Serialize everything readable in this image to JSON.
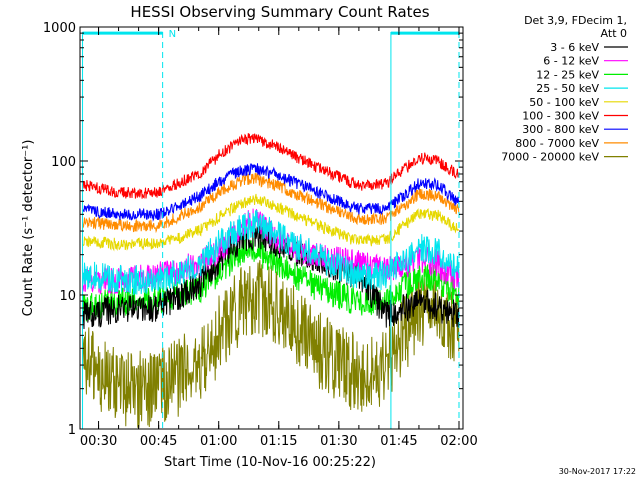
{
  "chart_data": {
    "type": "line",
    "title": "HESSI Observing Summary Count Rates",
    "xlabel": "Start Time (10-Nov-16 00:25:22)",
    "ylabel": "Count Rate (s⁻¹ detector⁻¹)",
    "xlim": [
      "00:25:22",
      "02:01:00"
    ],
    "ylim": [
      1,
      1000
    ],
    "yscale": "log",
    "grid": false,
    "x_ticks": [
      "00:30",
      "00:45",
      "01:00",
      "01:15",
      "01:30",
      "01:45",
      "02:00"
    ],
    "y_ticks": [
      "1",
      "10",
      "100",
      "1000"
    ],
    "legend": {
      "position": "right",
      "header": [
        "Det 3,9, FDecim 1,",
        "Att 0"
      ]
    },
    "annotations": {
      "flag_label": "N",
      "date_stamp": "30-Nov-2017 17:22"
    },
    "series": [
      {
        "name": "3 - 6 keV",
        "color": "#000000",
        "time": [
          "00:27",
          "00:35",
          "00:45",
          "00:55",
          "01:00",
          "01:05",
          "01:09",
          "01:15",
          "01:25",
          "01:35",
          "01:42",
          "01:50",
          "01:55",
          "02:00"
        ],
        "values": [
          7,
          8,
          8,
          12,
          18,
          24,
          28,
          24,
          18,
          14,
          7,
          9,
          8,
          7
        ]
      },
      {
        "name": "6 - 12 keV",
        "color": "#ff00ff",
        "time": [
          "00:27",
          "00:35",
          "00:45",
          "00:55",
          "01:00",
          "01:05",
          "01:09",
          "01:15",
          "01:25",
          "01:35",
          "01:42",
          "01:50",
          "01:55",
          "02:00"
        ],
        "values": [
          13,
          13,
          14,
          17,
          22,
          30,
          36,
          26,
          19,
          17,
          15,
          19,
          17,
          13
        ]
      },
      {
        "name": "12 - 25 keV",
        "color": "#00ee00",
        "time": [
          "00:27",
          "00:35",
          "00:45",
          "00:55",
          "01:00",
          "01:05",
          "01:09",
          "01:15",
          "01:25",
          "01:35",
          "01:42",
          "01:50",
          "01:55",
          "02:00"
        ],
        "values": [
          8,
          9,
          9,
          11,
          15,
          20,
          22,
          17,
          11,
          9,
          9,
          14,
          13,
          10
        ]
      },
      {
        "name": "25 - 50 keV",
        "color": "#00e5ee",
        "time": [
          "00:27",
          "00:35",
          "00:45",
          "00:55",
          "01:00",
          "01:05",
          "01:09",
          "01:15",
          "01:25",
          "01:35",
          "01:42",
          "01:50",
          "01:55",
          "02:00"
        ],
        "values": [
          14,
          13,
          13,
          17,
          24,
          31,
          34,
          28,
          19,
          14,
          14,
          23,
          21,
          15
        ]
      },
      {
        "name": "50 - 100 keV",
        "color": "#e6d800",
        "time": [
          "00:27",
          "00:35",
          "00:45",
          "00:55",
          "01:00",
          "01:05",
          "01:09",
          "01:15",
          "01:25",
          "01:35",
          "01:42",
          "01:50",
          "01:55",
          "02:00"
        ],
        "values": [
          25,
          24,
          24,
          30,
          38,
          47,
          52,
          45,
          33,
          25,
          26,
          41,
          39,
          30
        ]
      },
      {
        "name": "100 - 300 keV",
        "color": "#ff0000",
        "time": [
          "00:27",
          "00:35",
          "00:45",
          "00:55",
          "01:00",
          "01:05",
          "01:09",
          "01:15",
          "01:25",
          "01:35",
          "01:42",
          "01:50",
          "01:55",
          "02:00"
        ],
        "values": [
          65,
          58,
          58,
          80,
          110,
          140,
          150,
          125,
          88,
          66,
          68,
          106,
          100,
          78
        ]
      },
      {
        "name": "300 - 800 keV",
        "color": "#0000ff",
        "time": [
          "00:27",
          "00:35",
          "00:45",
          "00:55",
          "01:00",
          "01:05",
          "01:09",
          "01:15",
          "01:25",
          "01:35",
          "01:42",
          "01:50",
          "01:55",
          "02:00"
        ],
        "values": [
          43,
          40,
          40,
          54,
          70,
          84,
          88,
          78,
          58,
          44,
          44,
          68,
          66,
          48
        ]
      },
      {
        "name": "800 - 7000 keV",
        "color": "#ff8c00",
        "time": [
          "00:27",
          "00:35",
          "00:45",
          "00:55",
          "01:00",
          "01:05",
          "01:09",
          "01:15",
          "01:25",
          "01:35",
          "01:42",
          "01:50",
          "01:55",
          "02:00"
        ],
        "values": [
          35,
          33,
          33,
          45,
          58,
          70,
          74,
          65,
          48,
          37,
          37,
          57,
          55,
          42
        ]
      },
      {
        "name": "7000 - 20000 keV",
        "color": "#808000",
        "time": [
          "00:27",
          "00:35",
          "00:45",
          "00:55",
          "01:00",
          "01:05",
          "01:09",
          "01:15",
          "01:25",
          "01:35",
          "01:42",
          "01:50",
          "01:55",
          "02:00"
        ],
        "values": [
          3,
          2,
          2,
          3,
          5,
          8,
          10,
          8,
          4,
          2.5,
          3,
          8,
          8,
          5
        ]
      }
    ]
  }
}
